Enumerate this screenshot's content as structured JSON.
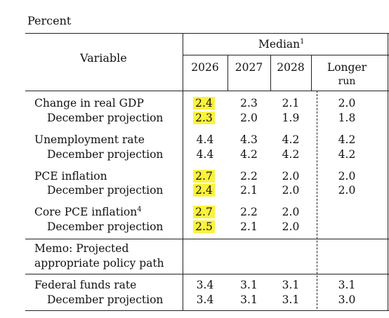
{
  "title": "Percent",
  "header": {
    "variable": "Variable",
    "median": "Median",
    "median_note": "1",
    "years": [
      "2026",
      "2027",
      "2028"
    ],
    "longer_run_1": "Longer",
    "longer_run_2": "run"
  },
  "rows": [
    {
      "label": "Change in real GDP",
      "note": "",
      "values": [
        "2.4",
        "2.3",
        "2.1",
        "2.0"
      ],
      "highlight_first": true
    },
    {
      "label": "December projection",
      "note": "",
      "values": [
        "2.3",
        "2.0",
        "1.9",
        "1.8"
      ],
      "highlight_first": true
    },
    {
      "label": "Unemployment rate",
      "note": "",
      "values": [
        "4.4",
        "4.3",
        "4.2",
        "4.2"
      ],
      "highlight_first": false
    },
    {
      "label": "December projection",
      "note": "",
      "values": [
        "4.4",
        "4.2",
        "4.2",
        "4.2"
      ],
      "highlight_first": false
    },
    {
      "label": "PCE inflation",
      "note": "",
      "values": [
        "2.7",
        "2.2",
        "2.0",
        "2.0"
      ],
      "highlight_first": true
    },
    {
      "label": "December projection",
      "note": "",
      "values": [
        "2.4",
        "2.1",
        "2.0",
        "2.0"
      ],
      "highlight_first": true
    },
    {
      "label": "Core PCE inflation",
      "note": "4",
      "values": [
        "2.7",
        "2.2",
        "2.0",
        ""
      ],
      "highlight_first": true
    },
    {
      "label": "December projection",
      "note": "",
      "values": [
        "2.5",
        "2.1",
        "2.0",
        ""
      ],
      "highlight_first": true
    },
    {
      "label": "Federal funds rate",
      "note": "",
      "values": [
        "3.4",
        "3.1",
        "3.1",
        "3.1"
      ],
      "highlight_first": false
    },
    {
      "label": "December projection",
      "note": "",
      "values": [
        "3.4",
        "3.1",
        "3.1",
        "3.0"
      ],
      "highlight_first": false
    }
  ],
  "memo": {
    "line1": "Memo: Projected",
    "line2": "appropriate policy path"
  },
  "colors": {
    "highlight": "#fbf23c",
    "rule": "#222222"
  }
}
